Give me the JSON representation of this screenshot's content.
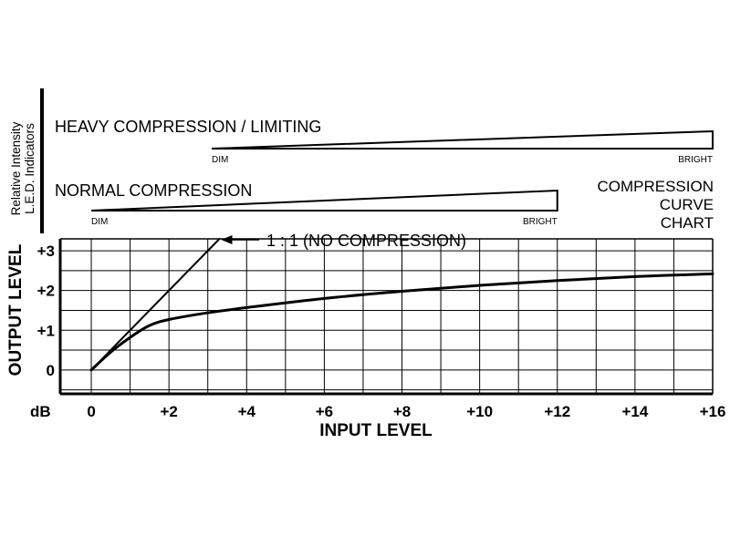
{
  "chart_data": {
    "type": "line",
    "title": "COMPRESSION CURVE CHART",
    "title_lines": [
      "COMPRESSION",
      "CURVE",
      "CHART"
    ],
    "xlabel": "INPUT LEVEL",
    "ylabel": "OUTPUT LEVEL",
    "unit_label": "dB",
    "x_ticks": [
      0,
      2,
      4,
      6,
      8,
      10,
      12,
      14,
      16
    ],
    "x_tick_labels": [
      "0",
      "+2",
      "+4",
      "+6",
      "+8",
      "+10",
      "+12",
      "+14",
      "+16"
    ],
    "y_ticks": [
      0,
      1,
      2,
      3
    ],
    "y_tick_labels": [
      "0",
      "+1",
      "+2",
      "+3"
    ],
    "xlim": [
      -0.8,
      16
    ],
    "ylim": [
      -0.6,
      3.3
    ],
    "grid": true,
    "series": [
      {
        "name": "1:1 (NO COMPRESSION)",
        "x": [
          0,
          3.3
        ],
        "y": [
          0,
          3.3
        ]
      },
      {
        "name": "",
        "x": [
          0,
          0.5,
          1,
          1.5,
          2,
          3,
          4,
          6,
          8,
          10,
          12,
          14,
          16
        ],
        "y": [
          0,
          0.45,
          0.82,
          1.12,
          1.27,
          1.44,
          1.57,
          1.8,
          1.98,
          2.13,
          2.25,
          2.35,
          2.42
        ]
      }
    ],
    "annotations": [
      {
        "text": "1 : 1 (NO COMPRESSION)",
        "x": 3.3,
        "y": 3.3
      }
    ]
  },
  "indicators": {
    "side_label_lines": [
      "Relative Intensity",
      "L.E.D. Indicators"
    ],
    "heavy": {
      "label": "HEAVY COMPRESSION / LIMITING",
      "dim": "DIM",
      "bright": "BRIGHT",
      "range": [
        3.1,
        16
      ]
    },
    "normal": {
      "label": "NORMAL COMPRESSION",
      "dim": "DIM",
      "bright": "BRIGHT",
      "range": [
        0,
        12
      ]
    }
  }
}
